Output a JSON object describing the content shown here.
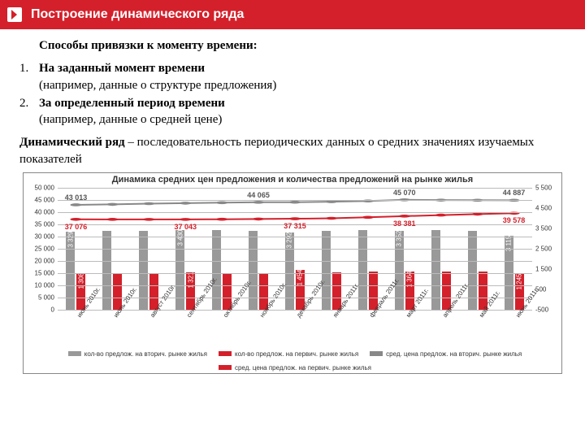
{
  "header": {
    "title": "Построение динамического ряда"
  },
  "text": {
    "intro": "Способы привязки к моменту времени:",
    "n1": "1.",
    "i1b": "На заданный момент времени",
    "i1p": "(например, данные о структуре предложения)",
    "n2": "2.",
    "i2b": "За определенный период времени",
    "i2p": "(например, данные о средней цене)",
    "def_b": "Динамический ряд",
    "def_r": " – последовательность периодических данных о средних значениях изучаемых показателей"
  },
  "chart": {
    "title": "Динамика средних цен предложения и количества предложений на рынке жилья",
    "y_left_max": 50000,
    "y_left_step": 5000,
    "y_right_max": 5500,
    "y_right_min": -500,
    "y_right_step": 1000,
    "categories": [
      "июнь 2010г.",
      "июль 2010г.",
      "август 2010г.",
      "сентябрь 2010г.",
      "октябрь 2010г.",
      "ноябрь 2010г.",
      "декабрь 2010г.",
      "январь 2011г.",
      "февраль 2011г.",
      "март 2011г.",
      "апрель 2011г.",
      "май 2011г.",
      "июнь 2011г."
    ],
    "bars_a": [
      3329,
      3380,
      3360,
      3430,
      3400,
      3360,
      3292,
      3380,
      3420,
      3352,
      3400,
      3360,
      3115
    ],
    "bars_b": [
      1308,
      1290,
      1300,
      1321,
      1310,
      1300,
      1454,
      1350,
      1360,
      1364,
      1380,
      1360,
      1245
    ],
    "bars_a_labels": {
      "0": "3 329",
      "3": "3 430",
      "6": "3 292",
      "9": "3 352",
      "12": "3 115"
    },
    "bars_b_labels": {
      "0": "1 308",
      "3": "1 321",
      "6": "1 454",
      "9": "1 364",
      "12": "1 245"
    },
    "line1": [
      43013,
      43200,
      43500,
      43700,
      43900,
      44065,
      44100,
      44300,
      44600,
      45070,
      44950,
      44900,
      44887
    ],
    "line2": [
      37076,
      37050,
      37040,
      37043,
      37100,
      37200,
      37315,
      37500,
      37900,
      38381,
      38800,
      39200,
      39578
    ],
    "line1_labels": {
      "0": "43 013",
      "5": "44 065",
      "9": "45 070",
      "12": "44 887"
    },
    "line2_labels": {
      "0": "37 076",
      "3": "37 043",
      "6": "37 315",
      "9": "38 381",
      "12": "39 578"
    },
    "colors": {
      "bar_a": "#999999",
      "bar_b": "#d4202b",
      "line1": "#888888",
      "line2": "#d4202b",
      "grid": "#bbbbbb"
    },
    "legend": [
      {
        "c": "#999999",
        "t": "кол-во предлож. на вторич. рынке жилья"
      },
      {
        "c": "#d4202b",
        "t": "кол-во предлож. на первич. рынке жилья"
      },
      {
        "c": "#888888",
        "t": "сред. цена предлож. на вторич. рынке жилья"
      },
      {
        "c": "#d4202b",
        "t": "сред. цена предлож. на первич. рынке жилья"
      }
    ]
  }
}
